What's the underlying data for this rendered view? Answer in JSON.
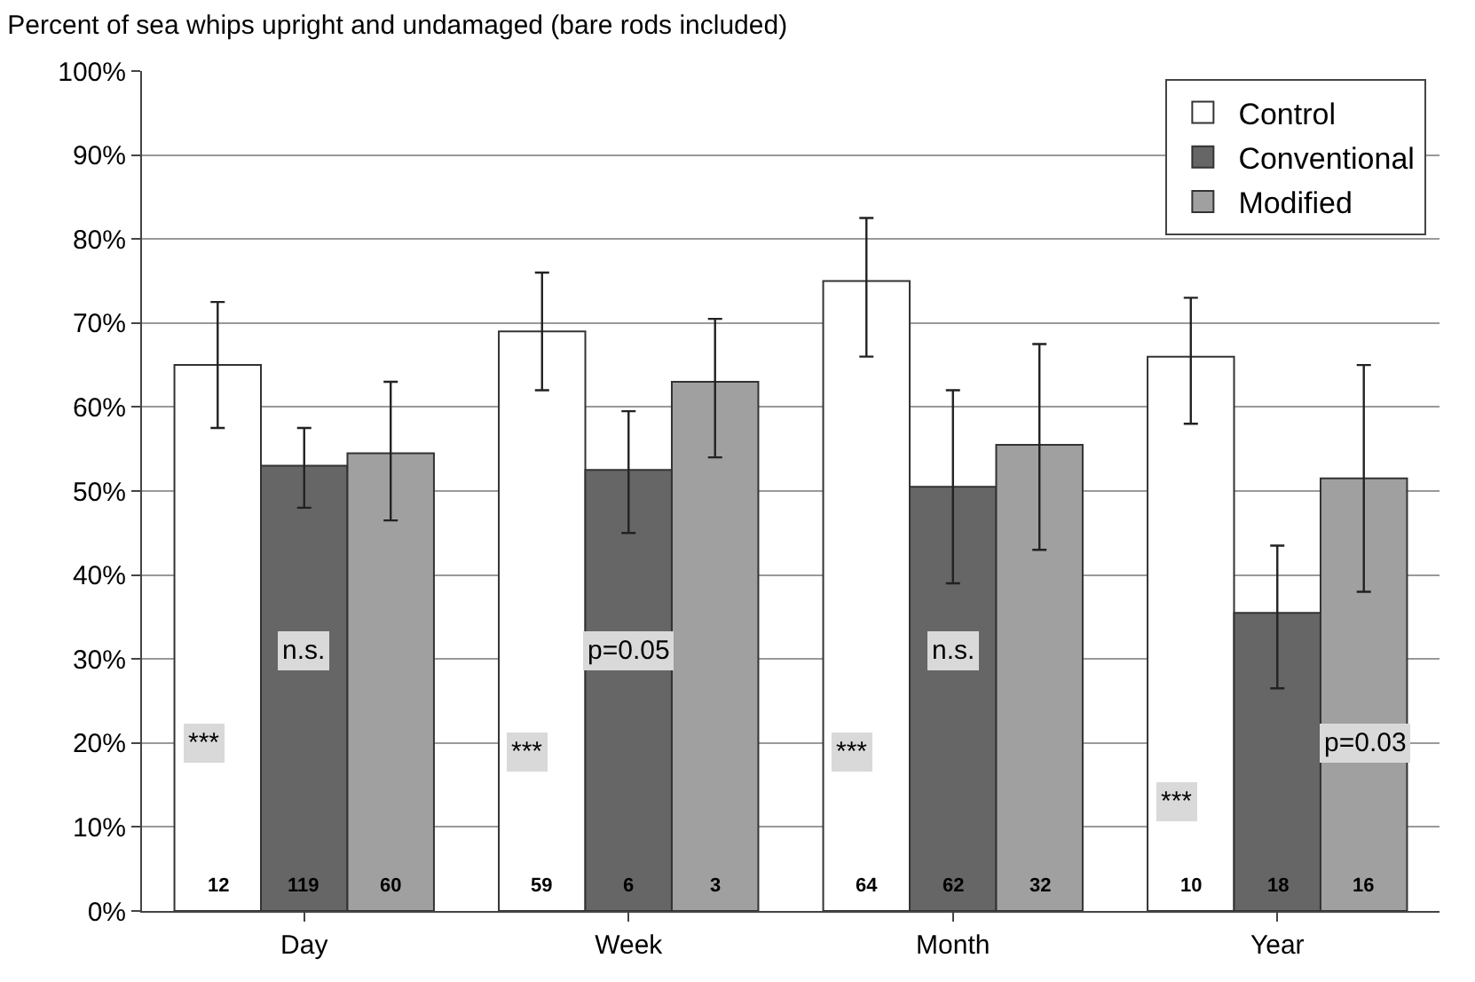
{
  "chart_data": {
    "type": "bar",
    "title": "Percent of sea whips upright and undamaged (bare rods included)",
    "categories": [
      "Day",
      "Week",
      "Month",
      "Year"
    ],
    "series": [
      {
        "name": "Control",
        "color": "#ffffff",
        "values": [
          65,
          69,
          75,
          66
        ],
        "errors": [
          [
            57.5,
            72.5
          ],
          [
            62,
            76
          ],
          [
            66,
            82.5
          ],
          [
            58,
            73
          ]
        ]
      },
      {
        "name": "Conventional",
        "color": "#666666",
        "values": [
          53,
          52.5,
          50.5,
          35.5
        ],
        "errors": [
          [
            48,
            57.5
          ],
          [
            45,
            59.5
          ],
          [
            39,
            62
          ],
          [
            26.5,
            43.5
          ]
        ]
      },
      {
        "name": "Modified",
        "color": "#a0a0a0",
        "values": [
          54.5,
          63,
          55.5,
          51.5
        ],
        "errors": [
          [
            46.5,
            63
          ],
          [
            54,
            70.5
          ],
          [
            43,
            67.5
          ],
          [
            38,
            65
          ]
        ]
      }
    ],
    "ylim": [
      0,
      100
    ],
    "yticks": [
      {
        "value": 0,
        "label": "0%"
      },
      {
        "value": 10,
        "label": "10%"
      },
      {
        "value": 20,
        "label": "20%"
      },
      {
        "value": 30,
        "label": "30%"
      },
      {
        "value": 40,
        "label": "40%"
      },
      {
        "value": 50,
        "label": "50%"
      },
      {
        "value": 60,
        "label": "60%"
      },
      {
        "value": 70,
        "label": "70%"
      },
      {
        "value": 80,
        "label": "80%"
      },
      {
        "value": 90,
        "label": "90%"
      },
      {
        "value": 100,
        "label": "100%"
      }
    ],
    "grid": "y",
    "legend": "top right",
    "annotations": [
      "***",
      "n.s.",
      "12",
      "119",
      "60",
      "***",
      "p=0.05",
      "59",
      "6",
      "3",
      "***",
      "n.s.",
      "64",
      "62",
      "32",
      "***",
      "p=0.03",
      "10",
      "18",
      "16"
    ]
  }
}
